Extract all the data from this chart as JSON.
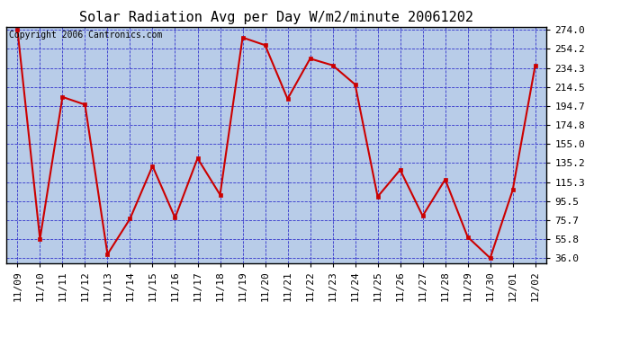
{
  "title": "Solar Radiation Avg per Day W/m2/minute 20061202",
  "copyright_text": "Copyright 2006 Cantronics.com",
  "outer_bg": "#ffffff",
  "plot_background": "#b8cce8",
  "line_color": "#cc0000",
  "marker_color": "#cc0000",
  "x_labels": [
    "11/09",
    "11/10",
    "11/11",
    "11/12",
    "11/13",
    "11/14",
    "11/15",
    "11/16",
    "11/17",
    "11/18",
    "11/19",
    "11/20",
    "11/21",
    "11/22",
    "11/23",
    "11/24",
    "11/25",
    "11/26",
    "11/27",
    "11/28",
    "11/29",
    "11/30",
    "12/01",
    "12/02"
  ],
  "y_values": [
    274.0,
    56.0,
    204.0,
    196.0,
    40.0,
    77.0,
    132.0,
    78.0,
    140.0,
    102.0,
    266.0,
    258.0,
    202.0,
    244.0,
    237.0,
    217.0,
    100.0,
    128.0,
    80.0,
    118.0,
    58.0,
    36.0,
    107.0,
    237.0
  ],
  "ytick_values": [
    36.0,
    55.8,
    75.7,
    95.5,
    115.3,
    135.2,
    155.0,
    174.8,
    194.7,
    214.5,
    234.3,
    254.2,
    274.0
  ],
  "ytick_labels": [
    "36.0",
    "55.8",
    "75.7",
    "95.5",
    "115.3",
    "135.2",
    "155.0",
    "174.8",
    "194.7",
    "214.5",
    "234.3",
    "254.2",
    "274.0"
  ],
  "ymin": 36.0,
  "ymax": 274.0,
  "title_fontsize": 11,
  "tick_fontsize": 8,
  "copyright_fontsize": 7,
  "grid_color": "#3333cc",
  "border_color": "#000000"
}
